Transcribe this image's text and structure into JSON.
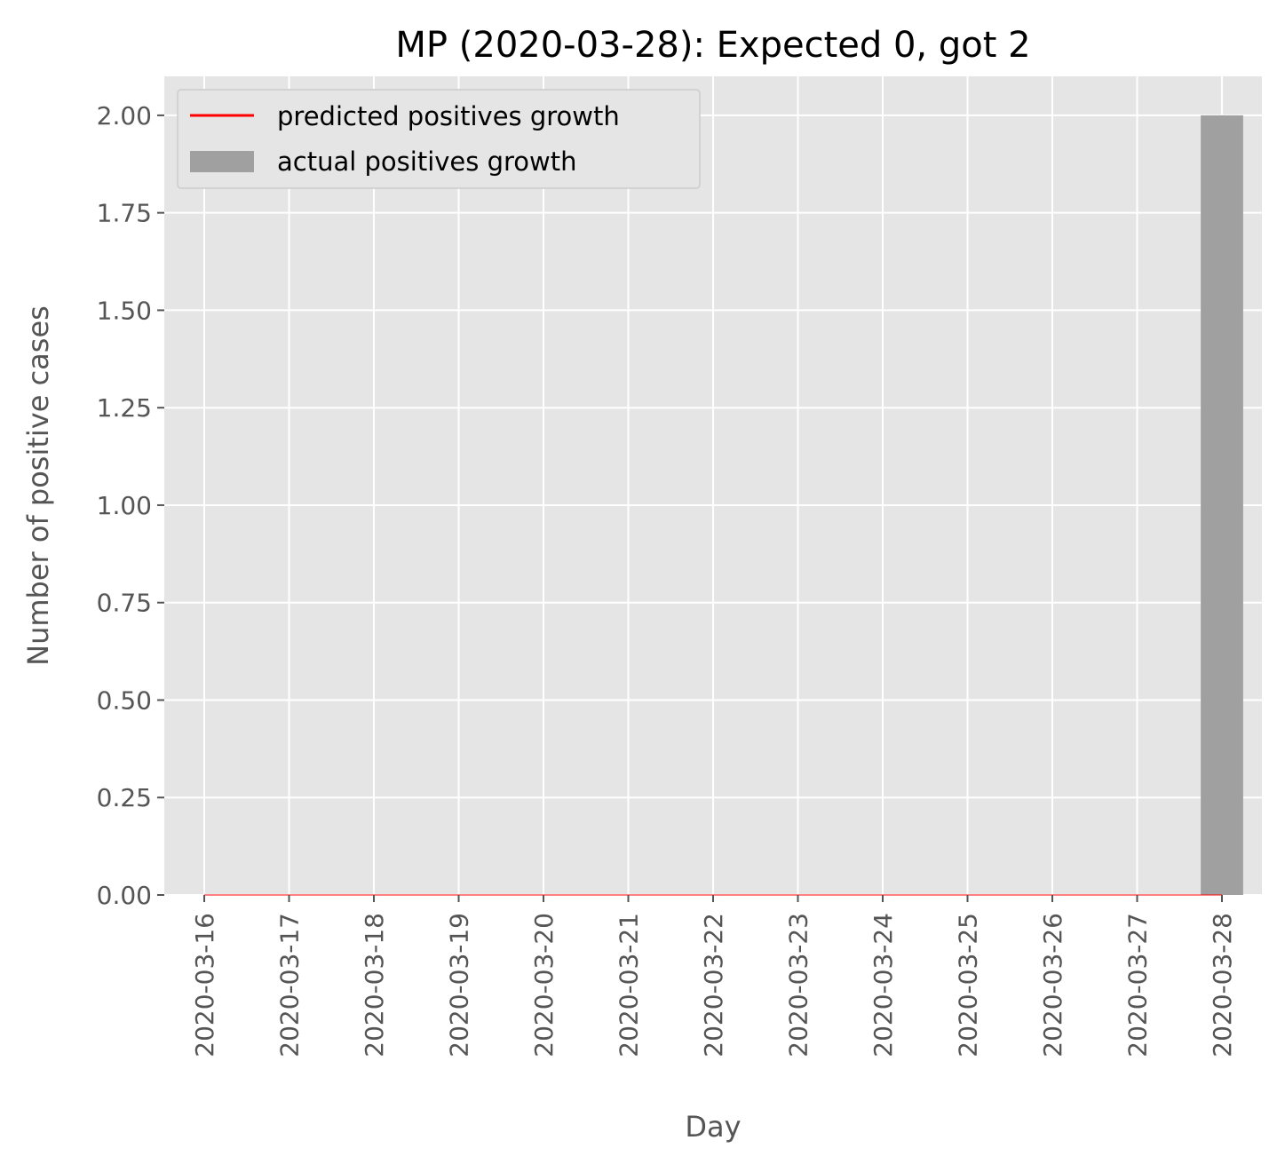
{
  "chart_data": {
    "type": "bar",
    "title": "MP (2020-03-28): Expected 0, got 2",
    "xlabel": "Day",
    "ylabel": "Number of positive cases",
    "ylim": [
      0,
      2.1
    ],
    "yticks": [
      "0.00",
      "0.25",
      "0.50",
      "0.75",
      "1.00",
      "1.25",
      "1.50",
      "1.75",
      "2.00"
    ],
    "ytick_values": [
      0,
      0.25,
      0.5,
      0.75,
      1.0,
      1.25,
      1.5,
      1.75,
      2.0
    ],
    "categories": [
      "2020-03-16",
      "2020-03-17",
      "2020-03-18",
      "2020-03-19",
      "2020-03-20",
      "2020-03-21",
      "2020-03-22",
      "2020-03-23",
      "2020-03-24",
      "2020-03-25",
      "2020-03-26",
      "2020-03-27",
      "2020-03-28"
    ],
    "series": [
      {
        "name": "predicted positives growth",
        "kind": "line",
        "color": "#ff0000",
        "values": [
          0,
          0,
          0,
          0,
          0,
          0,
          0,
          0,
          0,
          0,
          0,
          0,
          0
        ]
      },
      {
        "name": "actual positives growth",
        "kind": "bar",
        "color": "#a0a0a0",
        "values": [
          0,
          0,
          0,
          0,
          0,
          0,
          0,
          0,
          0,
          0,
          0,
          0,
          2
        ]
      }
    ],
    "grid": true,
    "legend_position": "top-left",
    "background": "#e5e5e5"
  }
}
